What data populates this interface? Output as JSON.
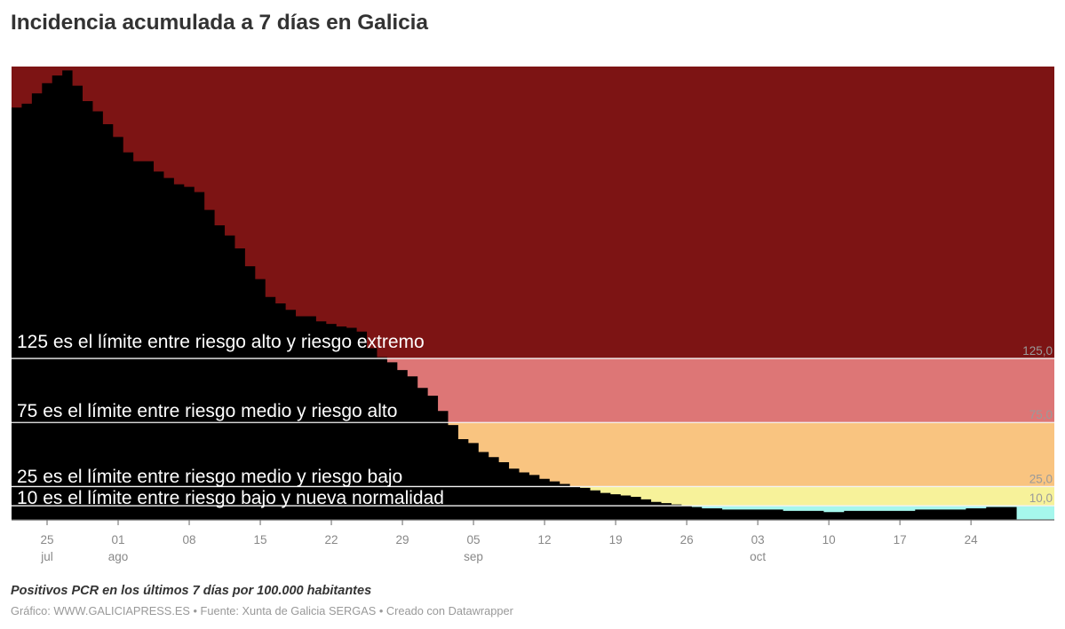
{
  "title": "Incidencia acumulada a 7 días en Galicia",
  "notes": "Positivos PCR en los últimos 7 días por 100.000 habitantes",
  "footer": "Gráfico: WWW.GALICIAPRESS.ES • Fuente: Xunta de Galicia SERGAS • Creado con Datawrapper",
  "colors": {
    "extremo": "#7d1414",
    "alto": "#dd7676",
    "medio": "#f9c480",
    "bajo": "#f7f29a",
    "nueva_normalidad": "#a6f7ed",
    "series": "#000000",
    "axis": "#666666"
  },
  "annotations": [
    {
      "text": "125 es el límite entre riesgo alto y riesgo extremo",
      "value": 125
    },
    {
      "text": "75 es el límite entre riesgo medio y riesgo alto",
      "value": 75
    },
    {
      "text": "25 es el límite entre riesgo medio y riesgo bajo",
      "value": 25
    },
    {
      "text": "10 es el límite entre riesgo bajo y nueva normalidad",
      "value": 10
    }
  ],
  "reference_lines": [
    {
      "label": "125,0",
      "value": 125
    },
    {
      "label": "75,0",
      "value": 75
    },
    {
      "label": "25,0",
      "value": 25
    },
    {
      "label": "10,0",
      "value": 10
    }
  ],
  "x_ticks": [
    {
      "day": "25",
      "month": "jul",
      "index": 3
    },
    {
      "day": "01",
      "month": "ago",
      "index": 10
    },
    {
      "day": "08",
      "month": "",
      "index": 17
    },
    {
      "day": "15",
      "month": "",
      "index": 24
    },
    {
      "day": "22",
      "month": "",
      "index": 31
    },
    {
      "day": "29",
      "month": "",
      "index": 38
    },
    {
      "day": "05",
      "month": "sep",
      "index": 45
    },
    {
      "day": "12",
      "month": "",
      "index": 52
    },
    {
      "day": "19",
      "month": "",
      "index": 59
    },
    {
      "day": "26",
      "month": "",
      "index": 66
    },
    {
      "day": "03",
      "month": "oct",
      "index": 73
    },
    {
      "day": "10",
      "month": "",
      "index": 80
    },
    {
      "day": "17",
      "month": "",
      "index": 87
    },
    {
      "day": "24",
      "month": "",
      "index": 94
    }
  ],
  "chart_data": {
    "type": "area",
    "subtype": "step",
    "title": "Incidencia acumulada a 7 días en Galicia",
    "xlabel": "",
    "ylabel": "Positivos PCR en los últimos 7 días por 100.000 habitantes",
    "x_start": "22 jul",
    "x_end": "28 oct",
    "ylim": [
      0,
      353
    ],
    "grid": false,
    "bands": [
      {
        "name": "riesgo extremo",
        "from": 125,
        "to": 353,
        "color": "#7d1414"
      },
      {
        "name": "riesgo alto",
        "from": 75,
        "to": 125,
        "color": "#dd7676"
      },
      {
        "name": "riesgo medio",
        "from": 25,
        "to": 75,
        "color": "#f9c480"
      },
      {
        "name": "riesgo bajo",
        "from": 10,
        "to": 25,
        "color": "#f7f29a"
      },
      {
        "name": "nueva normalidad",
        "from": 0,
        "to": 10,
        "color": "#a6f7ed"
      }
    ],
    "series": [
      {
        "name": "Incidencia acumulada 7 días",
        "values": [
          321,
          324,
          332,
          340,
          346,
          350,
          338,
          326,
          318,
          308,
          298,
          286,
          279,
          279,
          271,
          266,
          261,
          259,
          255,
          241,
          229,
          221,
          211,
          197,
          187,
          173,
          168,
          163,
          158,
          158,
          154,
          152,
          150,
          149,
          146,
          133,
          126,
          122,
          116,
          111,
          102,
          96,
          84,
          73,
          62,
          59,
          52,
          48,
          44,
          39,
          36,
          34,
          31,
          29,
          27,
          25,
          24,
          22,
          20,
          19,
          18,
          17,
          15,
          13,
          12,
          11,
          10,
          9,
          8,
          8,
          7,
          7,
          7,
          7,
          7,
          7,
          6,
          6,
          6,
          6,
          5,
          5,
          6,
          6,
          6,
          6,
          6,
          6,
          6,
          7,
          7,
          7,
          7,
          7,
          8,
          8,
          9,
          9,
          9
        ]
      }
    ]
  }
}
